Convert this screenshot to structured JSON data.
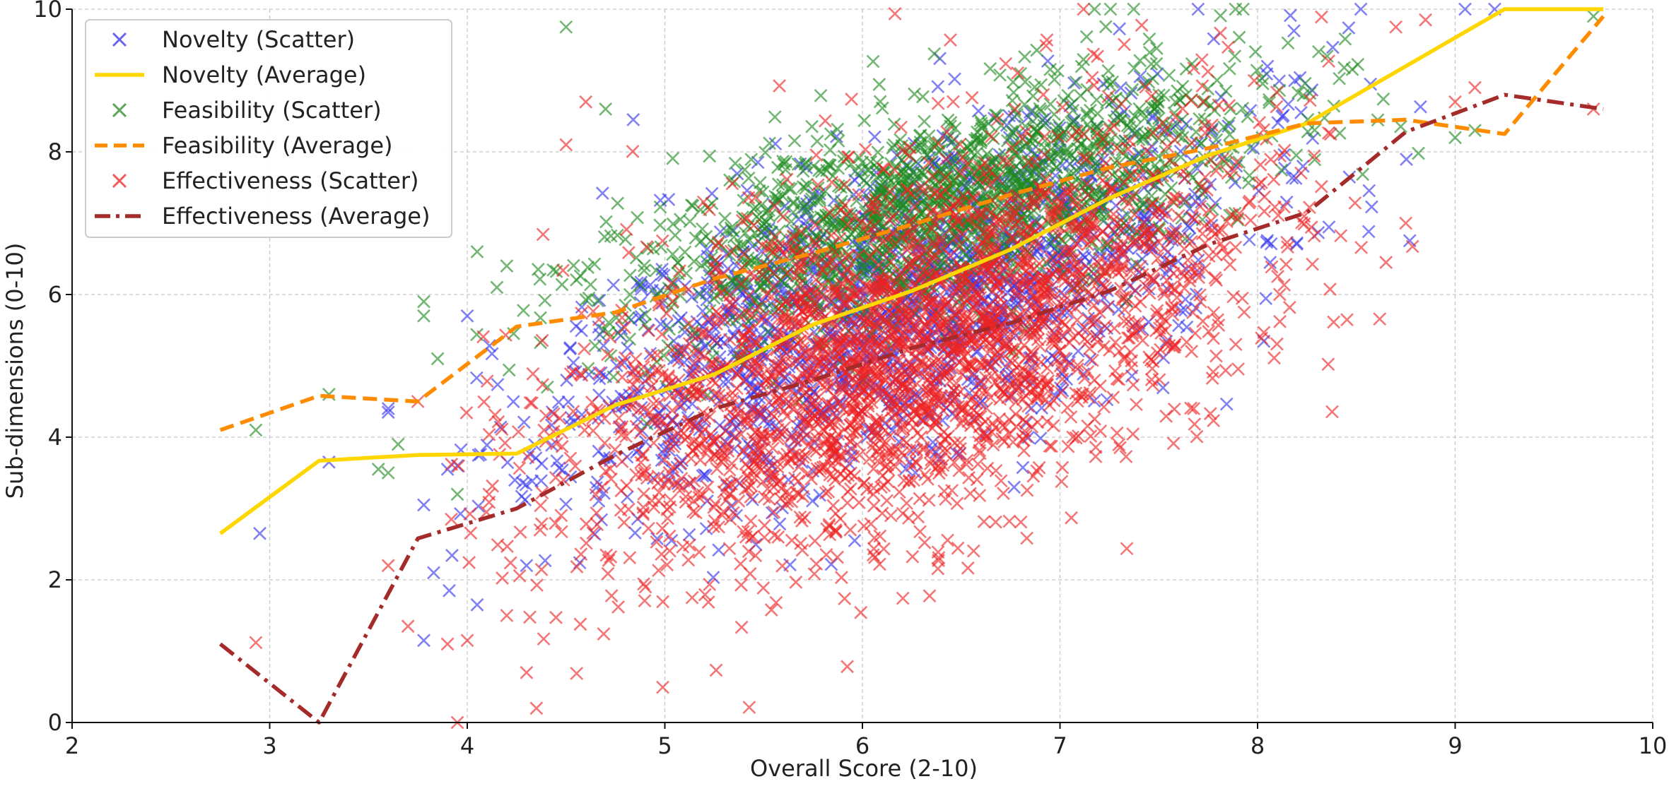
{
  "chart_data": {
    "type": "scatter",
    "title": "",
    "xlabel": "Overall Score (2-10)",
    "ylabel": "Sub-dimensions (0-10)",
    "xlim": [
      2,
      10
    ],
    "ylim": [
      0,
      10
    ],
    "xticks": [
      2,
      3,
      4,
      5,
      6,
      7,
      8,
      9,
      10
    ],
    "yticks": [
      0,
      2,
      4,
      6,
      8,
      10
    ],
    "grid": true,
    "legend_position": "top-left",
    "scatter_series": [
      {
        "name": "Novelty (Scatter)",
        "color": "#3333ee",
        "marker": "x",
        "center": [
          6.2,
          5.9
        ],
        "spread": [
          0.85,
          1.6
        ],
        "slope": 1.1,
        "count": 1600,
        "seed": 11,
        "outliers": [
          [
            2.95,
            2.65
          ],
          [
            3.3,
            3.65
          ],
          [
            3.6,
            4.35
          ],
          [
            3.6,
            4.4
          ],
          [
            3.78,
            3.05
          ],
          [
            3.78,
            1.15
          ],
          [
            3.83,
            2.1
          ],
          [
            3.9,
            3.55
          ],
          [
            3.95,
            3.6
          ],
          [
            4.0,
            5.7
          ],
          [
            4.05,
            1.65
          ],
          [
            4.3,
            2.2
          ],
          [
            9.05,
            10
          ],
          [
            9.2,
            10
          ]
        ]
      },
      {
        "name": "Feasibility (Scatter)",
        "color": "#1f8a1f",
        "marker": "x",
        "center": [
          6.4,
          7.2
        ],
        "spread": [
          0.8,
          1.1
        ],
        "slope": 0.8,
        "count": 1500,
        "seed": 23,
        "outliers": [
          [
            2.93,
            4.1
          ],
          [
            3.3,
            4.6
          ],
          [
            3.55,
            3.55
          ],
          [
            3.6,
            3.5
          ],
          [
            3.65,
            3.9
          ],
          [
            3.78,
            5.9
          ],
          [
            3.78,
            5.7
          ],
          [
            3.85,
            5.1
          ],
          [
            3.95,
            3.2
          ],
          [
            4.05,
            6.6
          ],
          [
            4.15,
            6.1
          ],
          [
            4.2,
            6.4
          ],
          [
            4.5,
            9.75
          ],
          [
            4.7,
            8.6
          ],
          [
            9.0,
            8.2
          ],
          [
            9.1,
            8.3
          ],
          [
            9.7,
            9.9
          ]
        ]
      },
      {
        "name": "Effectiveness (Scatter)",
        "color": "#ee2222",
        "marker": "x",
        "center": [
          6.2,
          5.2
        ],
        "spread": [
          0.85,
          1.9
        ],
        "slope": 1.0,
        "count": 2600,
        "seed": 37,
        "outliers": [
          [
            2.93,
            1.12
          ],
          [
            3.6,
            2.2
          ],
          [
            3.7,
            1.35
          ],
          [
            3.75,
            4.5
          ],
          [
            3.9,
            1.1
          ],
          [
            3.95,
            0.0
          ],
          [
            4.0,
            1.15
          ],
          [
            4.2,
            1.5
          ],
          [
            4.3,
            0.7
          ],
          [
            4.35,
            0.2
          ],
          [
            4.6,
            8.7
          ],
          [
            4.5,
            8.1
          ],
          [
            8.65,
            6.45
          ],
          [
            8.75,
            7.0
          ],
          [
            9.0,
            8.7
          ],
          [
            9.1,
            8.9
          ],
          [
            9.7,
            8.6
          ],
          [
            8.7,
            9.75
          ],
          [
            8.85,
            9.85
          ]
        ]
      }
    ],
    "line_series": [
      {
        "name": "Novelty (Average)",
        "color": "#ffd700",
        "style": "solid",
        "x": [
          2.75,
          3.25,
          3.75,
          4.25,
          4.75,
          5.25,
          5.75,
          6.25,
          6.75,
          7.25,
          7.75,
          8.25,
          8.75,
          9.25,
          9.75
        ],
        "y": [
          2.65,
          3.67,
          3.75,
          3.77,
          4.45,
          4.88,
          5.58,
          6.05,
          6.63,
          7.35,
          7.95,
          8.4,
          9.2,
          10.0,
          10.0
        ]
      },
      {
        "name": "Feasibility (Average)",
        "color": "#ff8c00",
        "style": "dashed",
        "x": [
          2.75,
          3.25,
          3.75,
          4.25,
          4.75,
          5.25,
          5.75,
          6.25,
          6.75,
          7.25,
          7.75,
          8.25,
          8.75,
          9.25,
          9.75
        ],
        "y": [
          4.1,
          4.58,
          4.5,
          5.55,
          5.75,
          6.22,
          6.58,
          6.98,
          7.4,
          7.78,
          8.05,
          8.4,
          8.45,
          8.25,
          9.9
        ]
      },
      {
        "name": "Effectiveness (Average)",
        "color": "#a52a2a",
        "style": "dashdot",
        "x": [
          2.75,
          3.25,
          3.75,
          4.25,
          4.75,
          5.25,
          5.75,
          6.25,
          6.75,
          7.25,
          7.75,
          8.25,
          8.75,
          9.25,
          9.75
        ],
        "y": [
          1.1,
          0.0,
          2.58,
          3.0,
          3.75,
          4.4,
          4.8,
          5.25,
          5.6,
          6.05,
          6.7,
          7.15,
          8.28,
          8.8,
          8.6
        ]
      }
    ],
    "legend": [
      {
        "label": "Novelty (Scatter)",
        "kind": "marker",
        "color": "#3333ee"
      },
      {
        "label": "Novelty (Average)",
        "kind": "line",
        "color": "#ffd700",
        "style": "solid"
      },
      {
        "label": "Feasibility (Scatter)",
        "kind": "marker",
        "color": "#1f8a1f"
      },
      {
        "label": "Feasibility (Average)",
        "kind": "line",
        "color": "#ff8c00",
        "style": "dashed"
      },
      {
        "label": "Effectiveness (Scatter)",
        "kind": "marker",
        "color": "#ee2222"
      },
      {
        "label": "Effectiveness (Average)",
        "kind": "line",
        "color": "#a52a2a",
        "style": "dashdot"
      }
    ]
  }
}
